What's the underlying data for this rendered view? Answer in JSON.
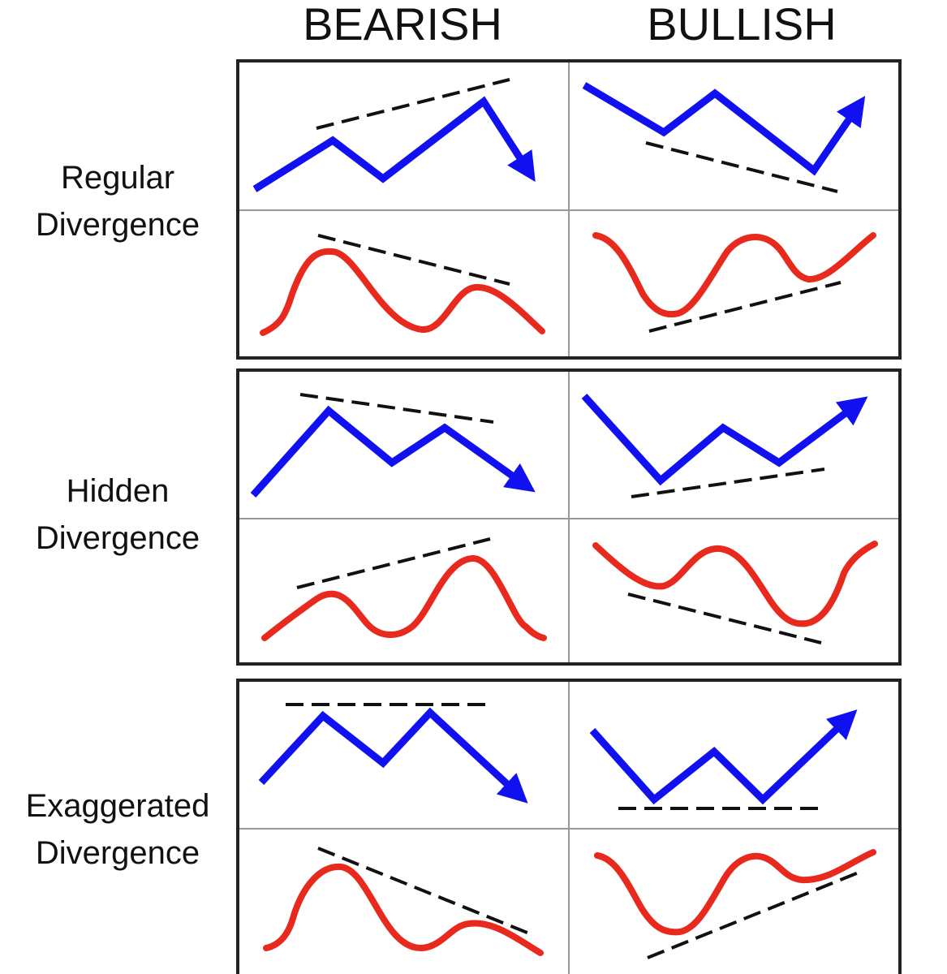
{
  "columns": {
    "bearish": "BEARISH",
    "bullish": "BULLISH"
  },
  "rows": [
    {
      "line1": "Regular",
      "line2": "Divergence"
    },
    {
      "line1": "Hidden",
      "line2": "Divergence"
    },
    {
      "line1": "Exaggerated",
      "line2": "Divergence"
    }
  ],
  "colors": {
    "price_line": "#1010f0",
    "oscillator_line": "#e8291e",
    "trend_line": "#111111",
    "frame": "#222222",
    "divider": "#999999"
  }
}
